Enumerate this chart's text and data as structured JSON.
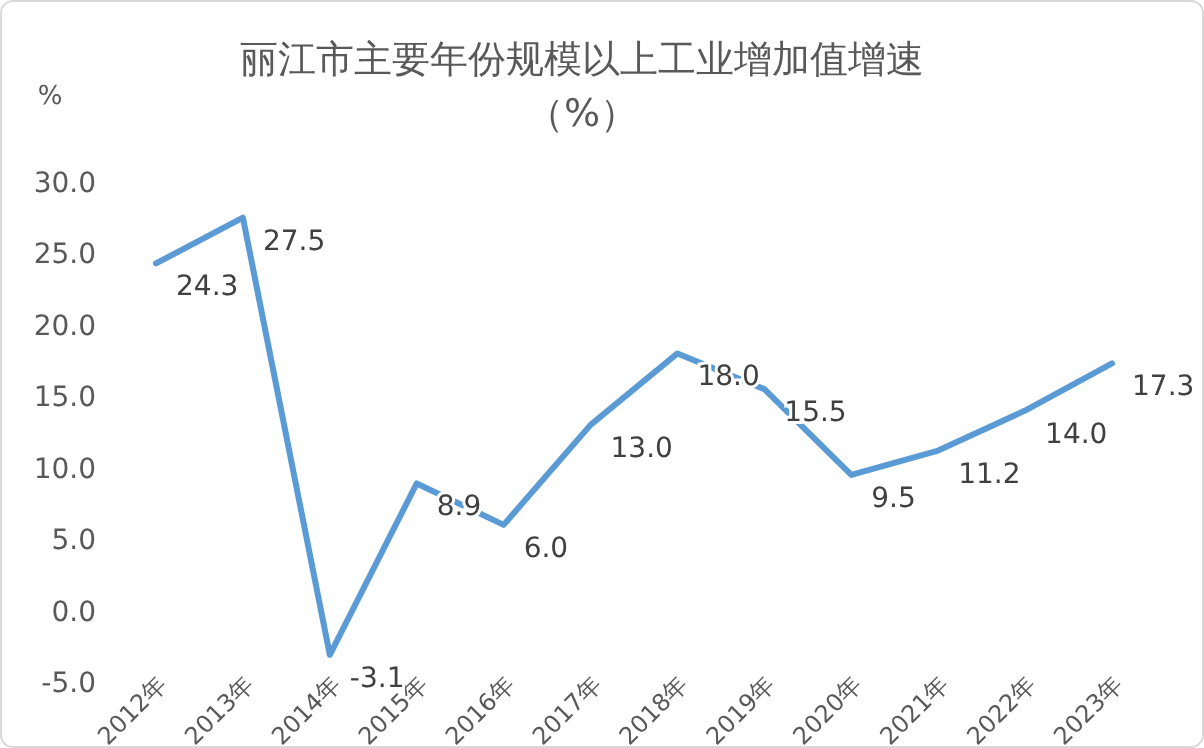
{
  "chart_data": {
    "type": "line",
    "title": "丽江市主要年份规模以上工业增加值增速",
    "subtitle": "（%）",
    "ylabel": "%",
    "categories": [
      "2012年",
      "2013年",
      "2014年",
      "2015年",
      "2016年",
      "2017年",
      "2018年",
      "2019年",
      "2020年",
      "2021年",
      "2022年",
      "2023年"
    ],
    "series": [
      {
        "color": "#5b9bd5",
        "values": [
          24.3,
          27.5,
          -3.1,
          8.9,
          6.0,
          13.0,
          18.0,
          15.5,
          9.5,
          11.2,
          14.0,
          17.3
        ],
        "value_labels": [
          "24.3",
          "27.5",
          "-3.1",
          "8.9",
          "6.0",
          "13.0",
          "18.0",
          "15.5",
          "9.5",
          "11.2",
          "14.0",
          "17.3"
        ]
      }
    ],
    "ylim": [
      -5,
      30
    ],
    "yticks": [
      {
        "value": -5,
        "label": "-5.0"
      },
      {
        "value": 0,
        "label": "0.0"
      },
      {
        "value": 5,
        "label": "5.0"
      },
      {
        "value": 10,
        "label": "10.0"
      },
      {
        "value": 15,
        "label": "15.0"
      },
      {
        "value": 20,
        "label": "20.0"
      },
      {
        "value": 25,
        "label": "25.0"
      },
      {
        "value": 30,
        "label": "30.0"
      }
    ],
    "grid": false,
    "marker": "none",
    "line_style": "solid"
  }
}
